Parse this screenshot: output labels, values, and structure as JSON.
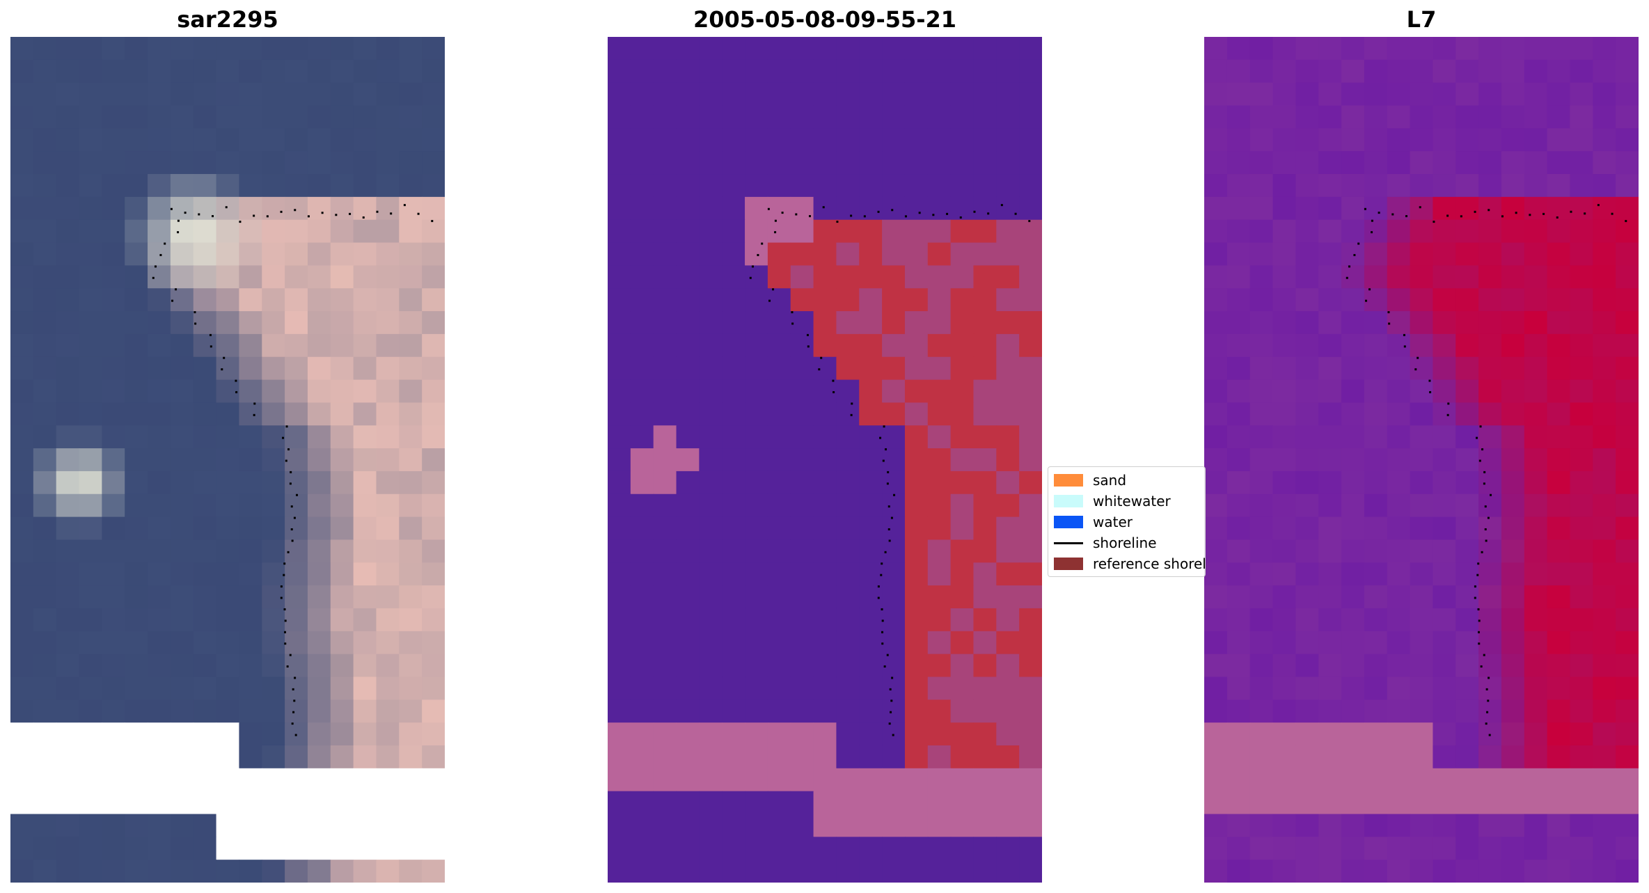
{
  "panels": [
    {
      "title": "sar2295"
    },
    {
      "title": "2005-05-08-09-55-21"
    },
    {
      "title": "L7"
    }
  ],
  "legend": {
    "items": [
      {
        "label": "sand",
        "color": "#ff8c3a",
        "kind": "patch"
      },
      {
        "label": "whitewater",
        "color": "#c9fbfb",
        "kind": "patch"
      },
      {
        "label": "water",
        "color": "#0a55f5",
        "kind": "patch"
      },
      {
        "label": "shoreline",
        "color": "#000000",
        "kind": "line"
      },
      {
        "label": "reference shoreline",
        "color": "#8e3232",
        "kind": "patch"
      }
    ]
  },
  "colors": {
    "classified_water": "#55229a",
    "classified_nodata": "#b9649a",
    "classified_sand": "#c03244",
    "classified_mixed": "#a8447a",
    "rgb_water": "#3d4d78",
    "rgb_sand": "#efc3b8",
    "rgb_whitewater": "#f6f6e0",
    "index_low": "#7c2aa0",
    "index_high": "#c8003c",
    "nodata": "#ffffff"
  }
}
